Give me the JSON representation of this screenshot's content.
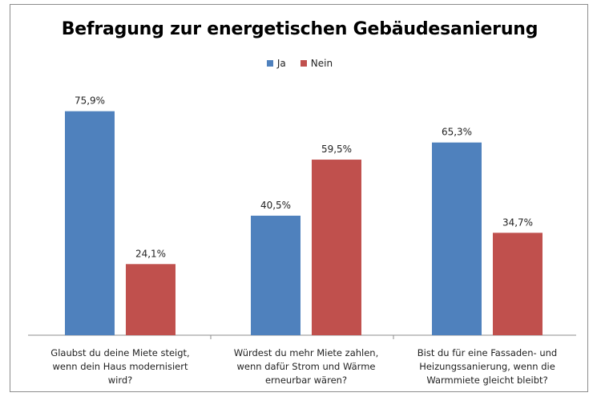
{
  "chart_data": {
    "type": "bar",
    "title": "Befragung zur energetischen Gebäudesanierung",
    "legend_position": "top",
    "ylim": [
      0,
      80
    ],
    "grid": false,
    "categories": [
      "Glaubst du deine Miete steigt, wenn dein Haus modernisiert wird?",
      "Würdest du mehr Miete zahlen, wenn dafür Strom und Wärme erneurbar wären?",
      "Bist du für eine Fassaden- und Heizungssanierung, wenn die Warmmiete gleicht bleibt?"
    ],
    "series": [
      {
        "name": "Ja",
        "color": "#4f81bd",
        "values": [
          75.9,
          40.5,
          65.3
        ],
        "labels": [
          "75,9%",
          "40,5%",
          "65,3%"
        ]
      },
      {
        "name": "Nein",
        "color": "#c0504d",
        "values": [
          24.1,
          59.5,
          34.7
        ],
        "labels": [
          "24,1%",
          "59,5%",
          "34,7%"
        ]
      }
    ]
  }
}
